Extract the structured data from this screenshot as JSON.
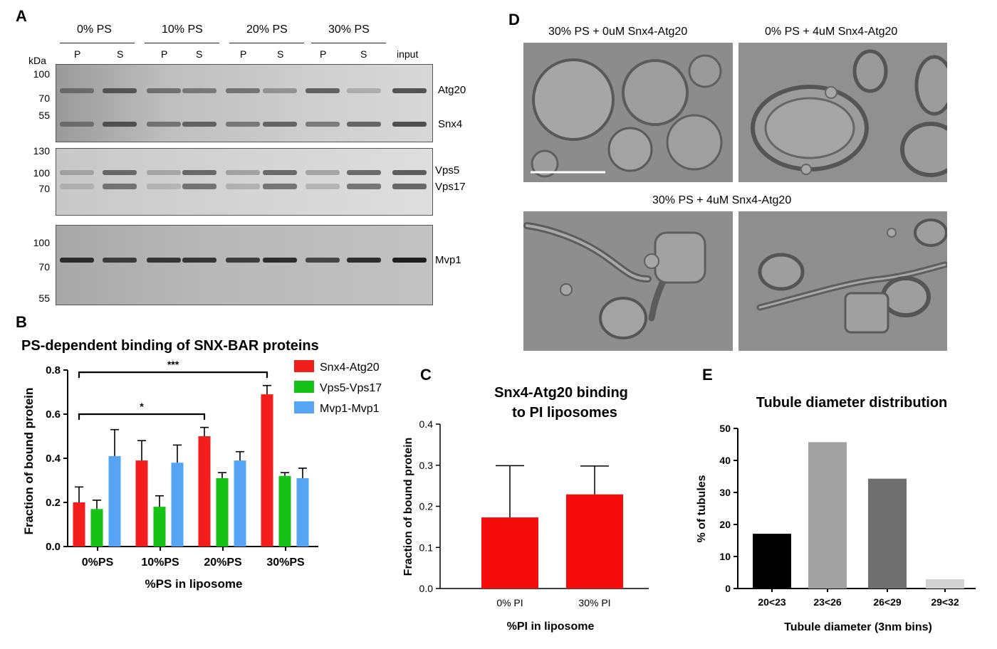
{
  "panel_a": {
    "letter": "A",
    "groups": [
      "0% PS",
      "10% PS",
      "20% PS",
      "30% PS"
    ],
    "lanes": [
      "P",
      "S",
      "P",
      "S",
      "P",
      "S",
      "P",
      "S",
      "input"
    ],
    "kda_label": "kDa",
    "gels": [
      {
        "markers": [
          "100",
          "70",
          "55"
        ],
        "proteins": [
          "Atg20",
          "Snx4"
        ]
      },
      {
        "markers": [
          "130",
          "100",
          "70"
        ],
        "proteins": [
          "Vps5",
          "Vps17"
        ]
      },
      {
        "markers": [
          "100",
          "70",
          "55"
        ],
        "proteins": [
          "Mvp1"
        ]
      }
    ]
  },
  "panel_d": {
    "letter": "D",
    "top_left_title": "30% PS + 0uM Snx4-Atg20",
    "top_right_title": "0% PS + 4uM Snx4-Atg20",
    "bottom_title": "30% PS + 4uM Snx4-Atg20"
  },
  "chart_data": [
    {
      "panel": "B",
      "type": "bar",
      "title": "PS-dependent binding of SNX-BAR proteins",
      "xlabel": "%PS in liposome",
      "ylabel": "Fraction of bound protein",
      "ylim": [
        0,
        0.8
      ],
      "yticks": [
        "0.0",
        "0.2",
        "0.4",
        "0.6",
        "0.8"
      ],
      "categories": [
        "0%PS",
        "10%PS",
        "20%PS",
        "30%PS"
      ],
      "series": [
        {
          "name": "Snx4-Atg20",
          "color": "#f21d1d",
          "values": [
            0.2,
            0.39,
            0.5,
            0.69
          ],
          "errors": [
            0.07,
            0.09,
            0.04,
            0.04
          ]
        },
        {
          "name": "Vps5-Vps17",
          "color": "#16c216",
          "values": [
            0.17,
            0.18,
            0.31,
            0.32
          ],
          "errors": [
            0.04,
            0.05,
            0.025,
            0.015
          ]
        },
        {
          "name": "Mvp1-Mvp1",
          "color": "#56a5f5",
          "values": [
            0.41,
            0.38,
            0.39,
            0.31
          ],
          "errors": [
            0.12,
            0.08,
            0.04,
            0.045
          ]
        }
      ],
      "legend": "top-right",
      "significance": [
        {
          "from": "0%PS",
          "to": "20%PS",
          "label": "*"
        },
        {
          "from": "0%PS",
          "to": "30%PS",
          "label": "***"
        }
      ]
    },
    {
      "panel": "C",
      "type": "bar",
      "title": "Snx4-Atg20 binding to PI liposomes",
      "title_lines": [
        "Snx4-Atg20 binding",
        "to PI liposomes"
      ],
      "xlabel": "%PI  in liposome",
      "ylabel": "Fraction of bound protein",
      "ylim": [
        0,
        0.4
      ],
      "yticks": [
        "0.0",
        "0.1",
        "0.2",
        "0.3",
        "0.4"
      ],
      "categories": [
        "0% PI",
        "30% PI"
      ],
      "values": [
        0.173,
        0.229
      ],
      "errors": [
        0.126,
        0.069
      ],
      "color": "#f70c0c"
    },
    {
      "panel": "E",
      "type": "bar",
      "title": "Tubule diameter distribution",
      "xlabel": "Tubule diameter (3nm bins)",
      "ylabel": "% of tubules",
      "ylim": [
        0,
        50
      ],
      "yticks": [
        "0",
        "10",
        "20",
        "30",
        "40",
        "50"
      ],
      "categories": [
        "20<23",
        "23<26",
        "26<29",
        "29<32"
      ],
      "values": [
        17.1,
        45.7,
        34.3,
        2.9
      ],
      "colors": [
        "#000000",
        "#a2a2a2",
        "#6f6f6f",
        "#d3d3d3"
      ]
    }
  ]
}
